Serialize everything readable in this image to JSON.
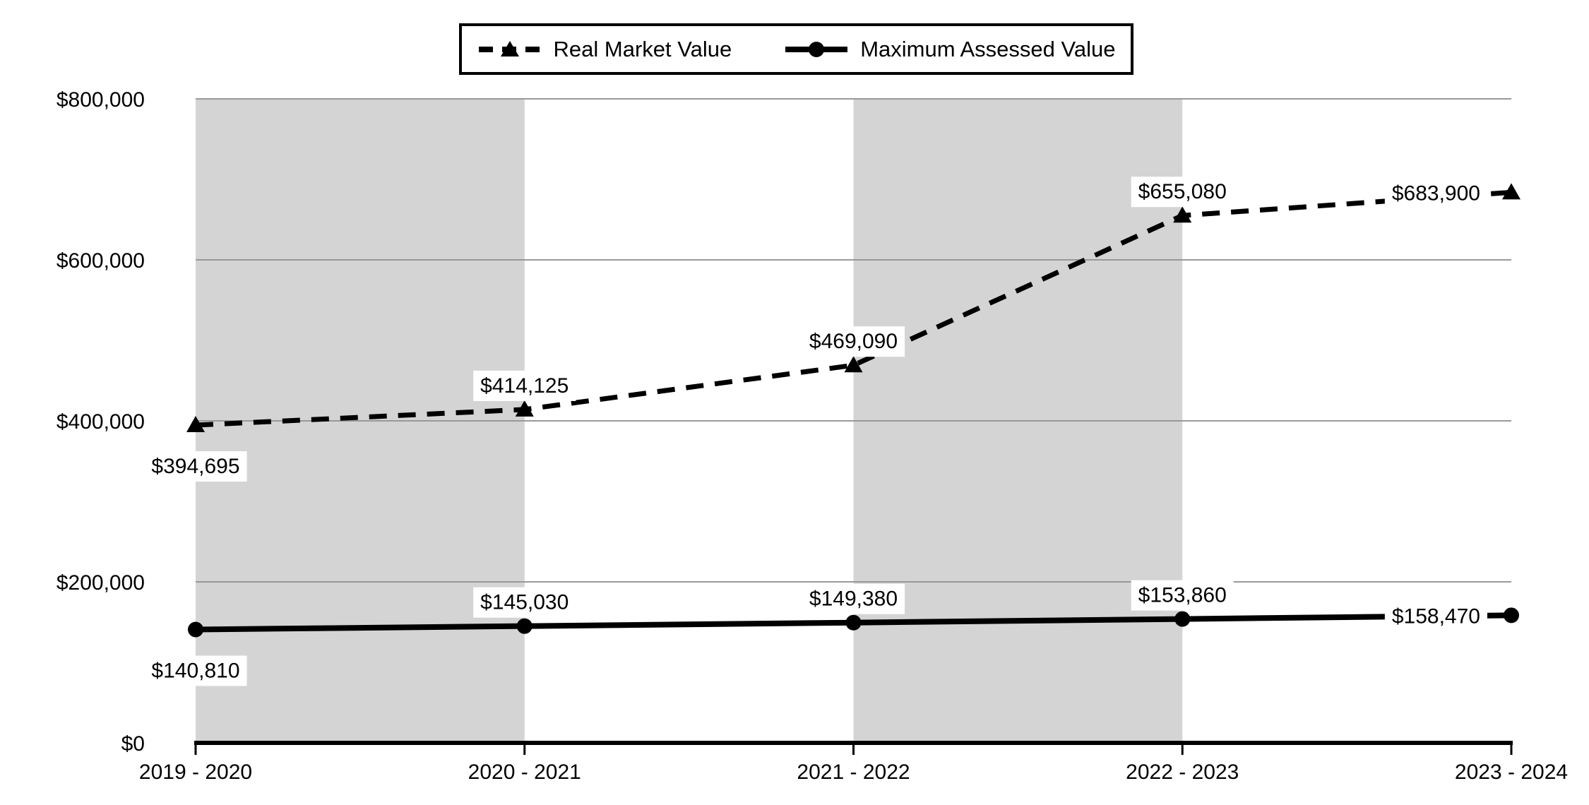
{
  "legend": {
    "items": [
      {
        "label": "Real Market Value"
      },
      {
        "label": "Maximum Assessed Value"
      }
    ]
  },
  "chart_data": {
    "type": "line",
    "title": "",
    "xlabel": "",
    "ylabel": "",
    "categories": [
      "2019 - 2020",
      "2020 - 2021",
      "2021 - 2022",
      "2022 - 2023",
      "2023 - 2024"
    ],
    "series": [
      {
        "name": "Real Market Value",
        "line_style": "dashed",
        "marker": "triangle",
        "values": [
          394695,
          414125,
          469090,
          655080,
          683900
        ],
        "point_labels": [
          "$394,695",
          "$414,125",
          "$469,090",
          "$655,080",
          "$683,900"
        ],
        "label_positions": [
          "below",
          "above",
          "above",
          "above",
          "left"
        ]
      },
      {
        "name": "Maximum Assessed Value",
        "line_style": "solid",
        "marker": "circle",
        "values": [
          140810,
          145030,
          149380,
          153860,
          158470
        ],
        "point_labels": [
          "$140,810",
          "$145,030",
          "$149,380",
          "$153,860",
          "$158,470"
        ],
        "label_positions": [
          "below",
          "above",
          "above",
          "above",
          "left"
        ]
      }
    ],
    "y_axis": {
      "range": [
        0,
        800000
      ],
      "ticks": [
        {
          "value": 0,
          "label": "$0"
        },
        {
          "value": 200000,
          "label": "$200,000"
        },
        {
          "value": 400000,
          "label": "$400,000"
        },
        {
          "value": 600000,
          "label": "$600,000"
        },
        {
          "value": 800000,
          "label": "$800,000"
        }
      ]
    },
    "grid": true,
    "legend_position": "top-center",
    "shaded_column_indices": [
      0,
      2
    ],
    "colors": {
      "series": "#000000",
      "axis": "#000000",
      "band": "#d4d4d4",
      "gridline": "#999999",
      "background": "#ffffff",
      "label_background": "#ffffff"
    }
  }
}
